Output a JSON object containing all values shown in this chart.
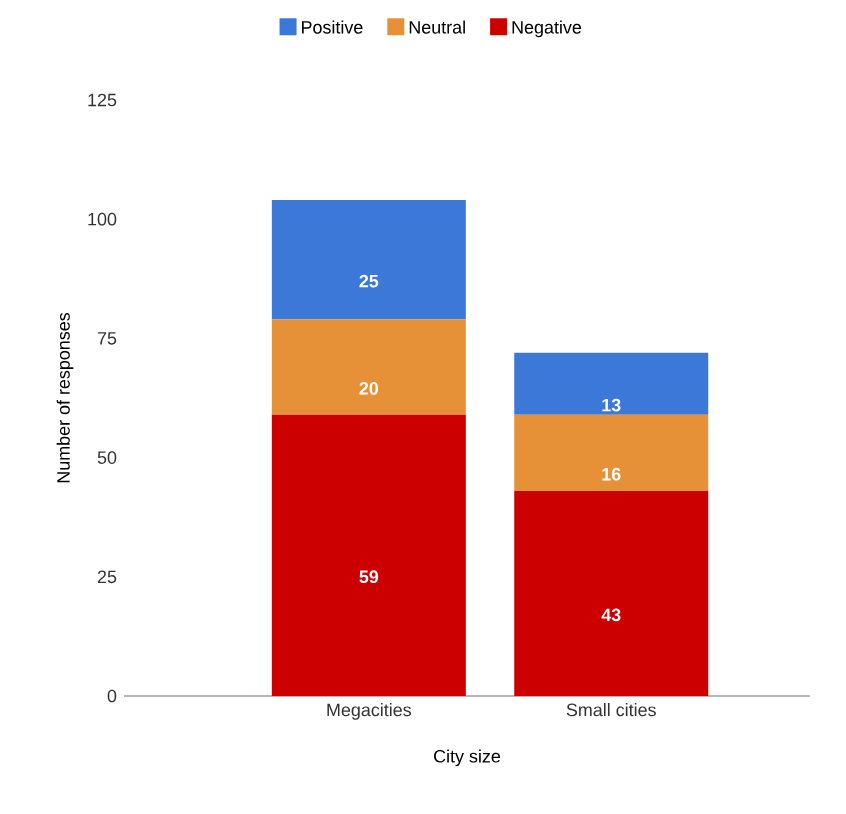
{
  "chart_data": {
    "type": "bar",
    "stacked": true,
    "xlabel": "City size",
    "ylabel": "Number of responses",
    "categories": [
      "Megacities",
      "Small cities"
    ],
    "series": [
      {
        "name": "Negative",
        "color": "#cc0000",
        "values": [
          59,
          43
        ]
      },
      {
        "name": "Neutral",
        "color": "#e69138",
        "values": [
          20,
          16
        ]
      },
      {
        "name": "Positive",
        "color": "#3c78d8",
        "values": [
          25,
          13
        ]
      }
    ],
    "ylim": [
      0,
      125
    ],
    "yticks": [
      0,
      25,
      50,
      75,
      100,
      125
    ],
    "grid": false,
    "legend": "top",
    "data_labels": true
  }
}
